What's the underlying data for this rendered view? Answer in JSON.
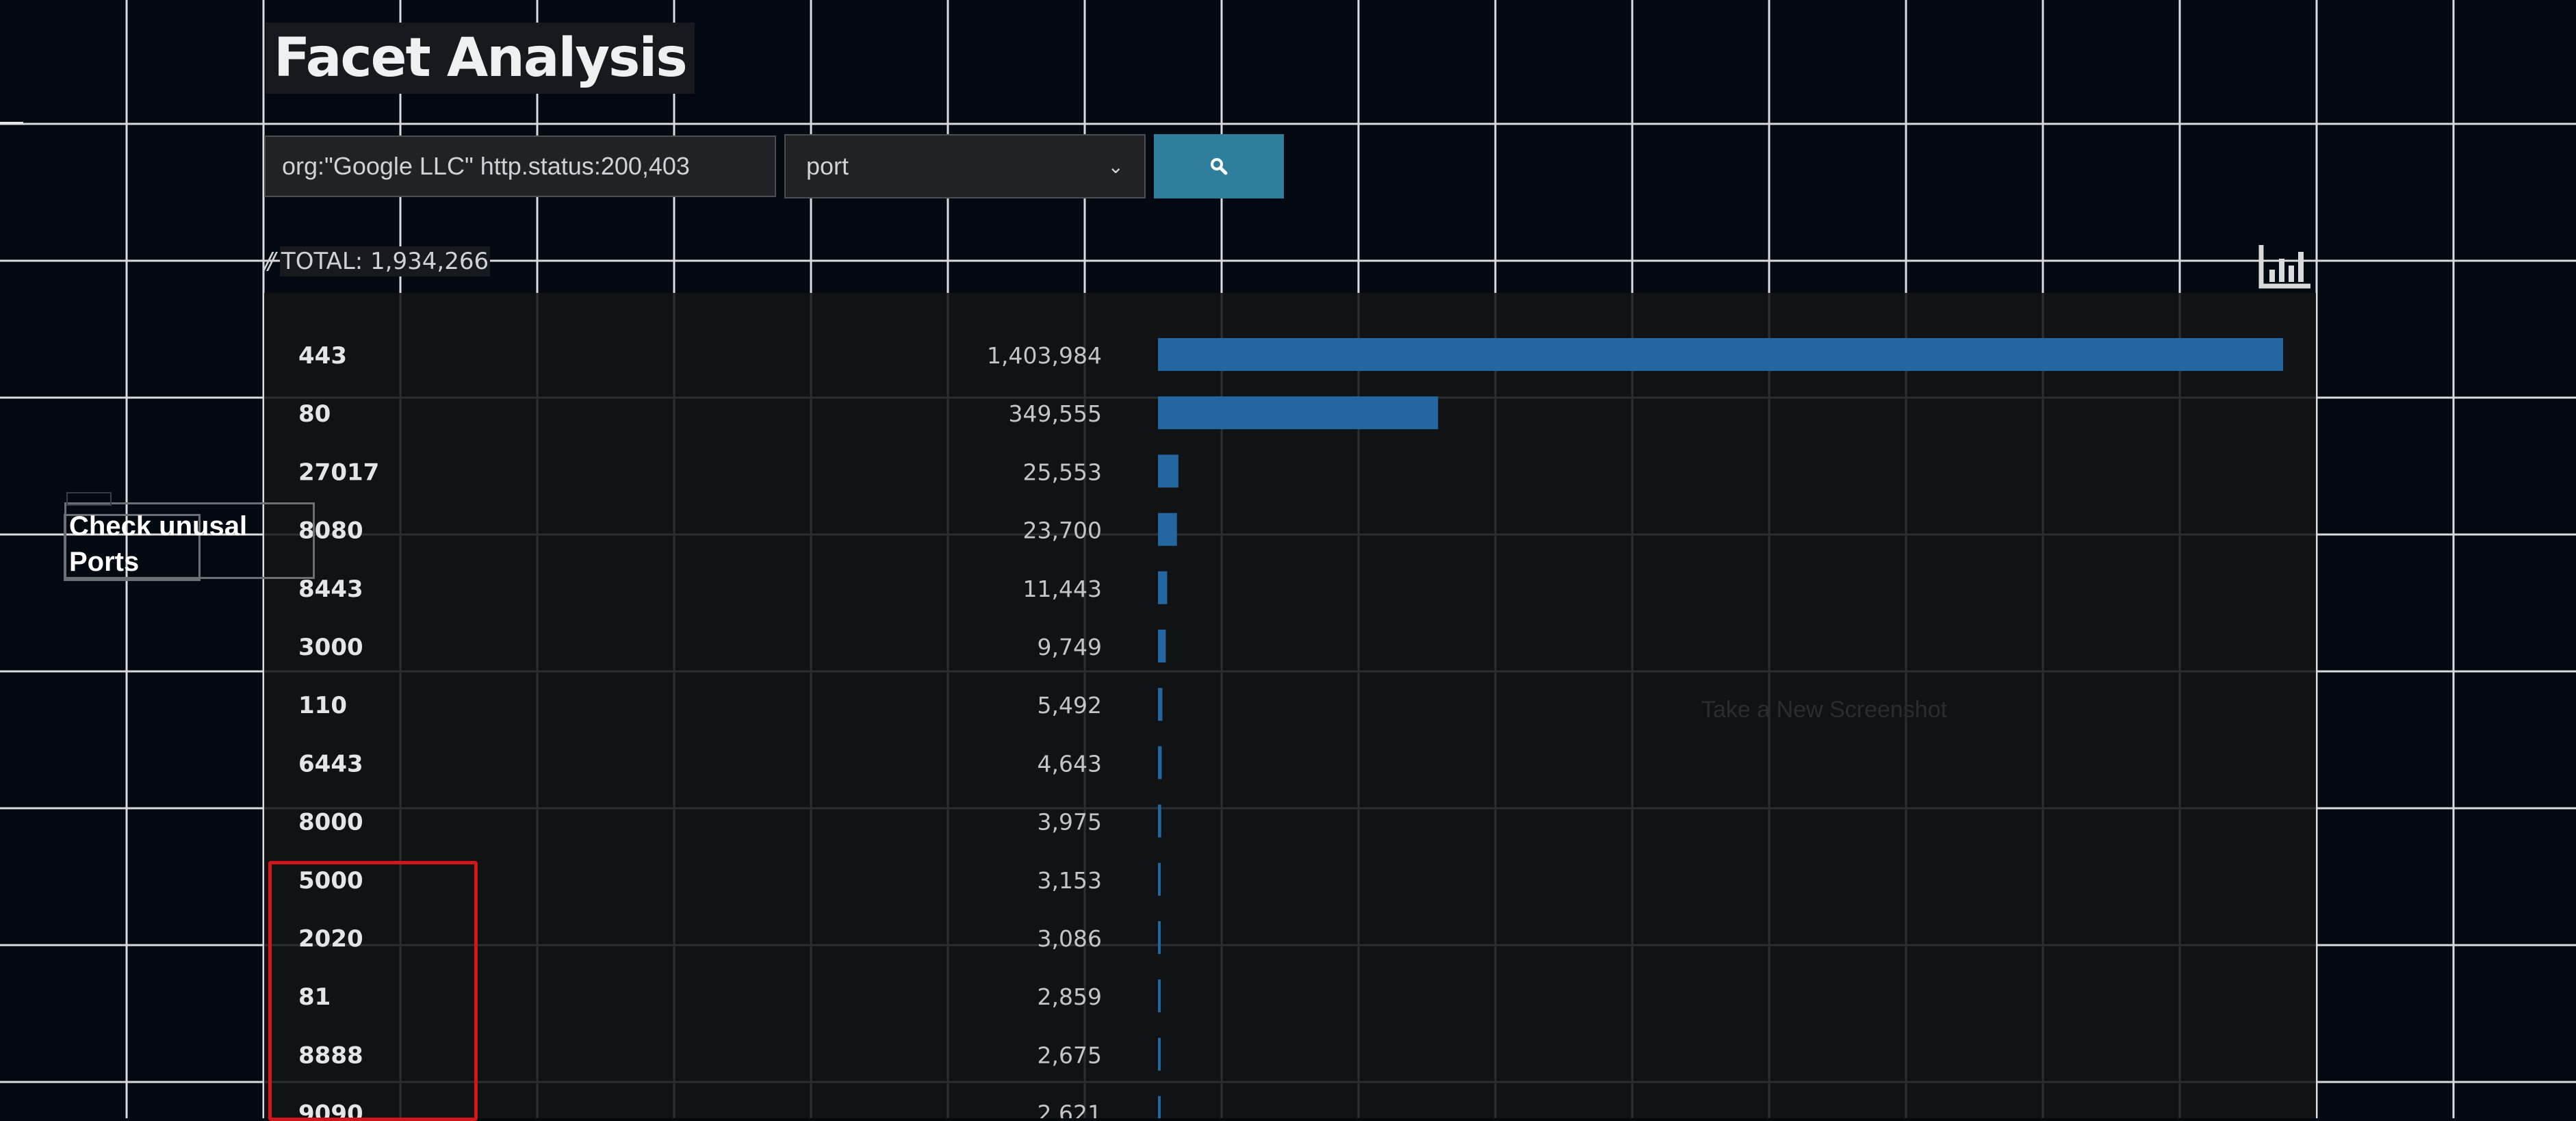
{
  "header": {
    "title": "Facet Analysis"
  },
  "search": {
    "query": "org:\"Google LLC\" http.status:200,403",
    "facet_selected": "port",
    "search_button_icon": "search-icon"
  },
  "summary": {
    "total_label": "TOTAL: 1,934,266"
  },
  "annotation": {
    "text_line1": "Check unusal",
    "text_line2": "Ports"
  },
  "watermark": "Take a New Screenshot",
  "colors": {
    "background": "#030911",
    "bar": "#2466a0",
    "highlight": "#d4161b",
    "search_button": "#2d7f9c"
  },
  "chart_data": {
    "type": "bar",
    "orientation": "horizontal",
    "categories": [
      "443",
      "80",
      "27017",
      "8080",
      "8443",
      "3000",
      "110",
      "6443",
      "8000",
      "5000",
      "2020",
      "81",
      "8888",
      "9090"
    ],
    "value_labels": [
      "1,403,984",
      "349,555",
      "25,553",
      "23,700",
      "11,443",
      "9,749",
      "5,492",
      "4,643",
      "3,975",
      "3,153",
      "3,086",
      "2,859",
      "2,675",
      "2,621"
    ],
    "values": [
      1403984,
      349555,
      25553,
      23700,
      11443,
      9749,
      5492,
      4643,
      3975,
      3153,
      3086,
      2859,
      2675,
      2621
    ],
    "xlim": [
      0,
      1403984
    ]
  }
}
